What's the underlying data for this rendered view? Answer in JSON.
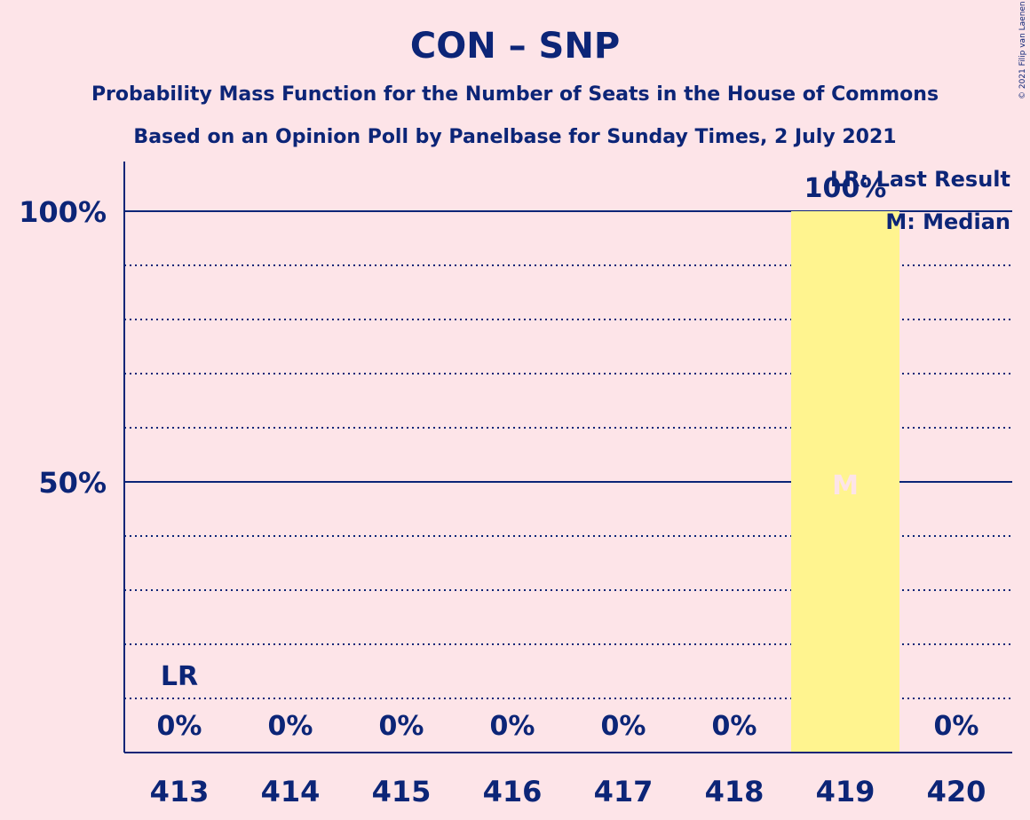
{
  "chart_data": {
    "type": "bar",
    "title": "CON – SNP",
    "subtitle": "Probability Mass Function for the Number of Seats in the House of Commons",
    "subtitle2": "Based on an Opinion Poll by Panelbase for Sunday Times, 2 July 2021",
    "categories": [
      "413",
      "414",
      "415",
      "416",
      "417",
      "418",
      "419",
      "420"
    ],
    "values": [
      0,
      0,
      0,
      0,
      0,
      0,
      100,
      0
    ],
    "value_labels": [
      "0%",
      "0%",
      "0%",
      "0%",
      "0%",
      "0%",
      "100%",
      "0%"
    ],
    "ylim": [
      0,
      100
    ],
    "y_ticks": [
      {
        "value": 50,
        "label": "50%"
      },
      {
        "value": 100,
        "label": "100%"
      }
    ],
    "grid": true,
    "last_result": {
      "category": "413",
      "label": "LR"
    },
    "median": {
      "category": "419",
      "label": "M"
    },
    "legend": [
      "LR: Last Result",
      "M: Median"
    ],
    "legend_position": "top-right",
    "copyright": "© 2021 Filip van Laenen",
    "colors": {
      "background": "#fde4e8",
      "text": "#0c2577",
      "bar": "#fff48f",
      "median_text": "#fde4e8"
    }
  }
}
